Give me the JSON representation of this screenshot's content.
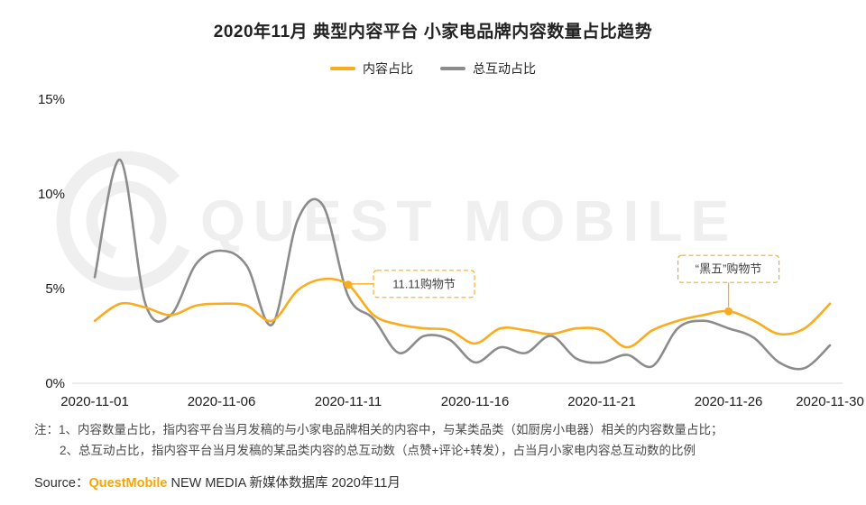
{
  "title": "2020年11月 典型内容平台 小家电品牌内容数量占比趋势",
  "watermark": "QUEST MOBILE",
  "colors": {
    "accent": "#FBAC1E",
    "gray": "#8C8C8C",
    "brand": "#F7A600",
    "watermark": "#EFEFEF",
    "axis": "#D9D9D9",
    "tick_text": "#1a1a1a",
    "annotation_text": "#404040"
  },
  "chart_data": {
    "type": "line",
    "x_unit": "day of 2020-11",
    "days": [
      1,
      2,
      3,
      4,
      5,
      6,
      7,
      8,
      9,
      10,
      11,
      12,
      13,
      14,
      15,
      16,
      17,
      18,
      19,
      20,
      21,
      22,
      23,
      24,
      25,
      26,
      27,
      28,
      29,
      30
    ],
    "x_tick_days": [
      1,
      6,
      11,
      16,
      21,
      26,
      30
    ],
    "x_tick_labels": [
      "2020-11-01",
      "2020-11-06",
      "2020-11-11",
      "2020-11-16",
      "2020-11-21",
      "2020-11-26",
      "2020-11-30"
    ],
    "ylim": [
      0,
      15
    ],
    "ytick_values": [
      0,
      5,
      10,
      15
    ],
    "ytick_labels": [
      "0%",
      "5%",
      "10%",
      "15%"
    ],
    "grid": false,
    "legend_position": "top",
    "series": [
      {
        "name": "内容占比",
        "color": "#FBAC1E",
        "values": [
          3.3,
          4.2,
          4.0,
          3.6,
          4.1,
          4.2,
          4.1,
          3.3,
          4.9,
          5.5,
          5.2,
          3.6,
          3.1,
          2.9,
          2.8,
          2.1,
          2.9,
          2.8,
          2.6,
          2.9,
          2.8,
          1.9,
          2.8,
          3.3,
          3.6,
          3.8,
          3.3,
          2.6,
          2.9,
          4.2
        ]
      },
      {
        "name": "总互动占比",
        "color": "#8C8C8C",
        "values": [
          5.6,
          11.8,
          4.2,
          3.6,
          6.3,
          7.0,
          6.2,
          3.1,
          8.6,
          9.4,
          4.6,
          3.4,
          1.6,
          2.5,
          2.3,
          1.1,
          1.9,
          1.6,
          2.5,
          1.3,
          1.1,
          1.5,
          0.9,
          2.9,
          3.3,
          2.9,
          2.4,
          1.1,
          0.8,
          2.0
        ]
      }
    ],
    "annotations": [
      {
        "label": "11.11购物节",
        "day": 11,
        "series": "内容占比",
        "placement": "right"
      },
      {
        "label": "“黑五”购物节",
        "day": 26,
        "series": "内容占比",
        "placement": "above"
      }
    ]
  },
  "notes": {
    "line1": "注：1、内容数量占比，指内容平台当月发稿的与小家电品牌相关的内容中，与某类品类（如厨房小电器）相关的内容数量占比；",
    "line2": "2、总互动占比，指内容平台当月发稿的某品类内容的总互动数（点赞+评论+转发），占当月小家电内容总互动数的比例"
  },
  "source": {
    "prefix": "Source：",
    "brand": "QuestMobile",
    "suffix": " NEW MEDIA 新媒体数据库 2020年11月"
  }
}
